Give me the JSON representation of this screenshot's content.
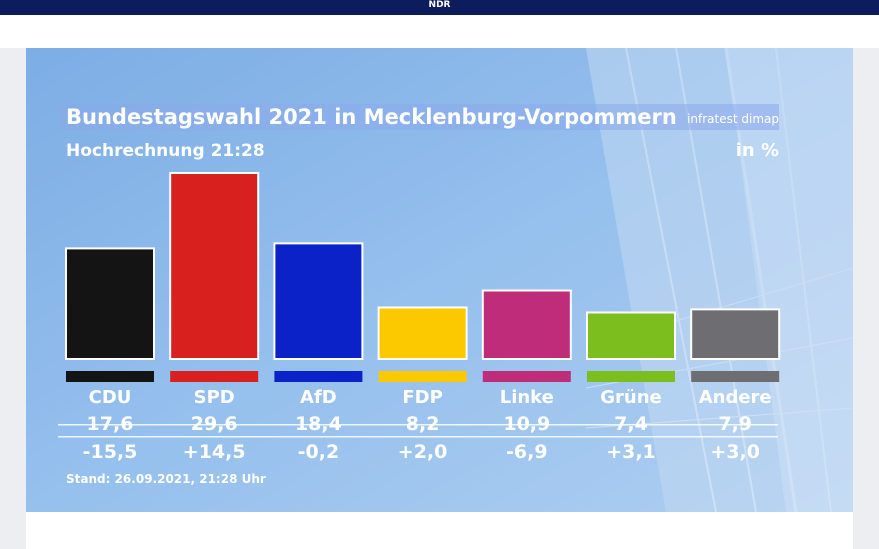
{
  "header": {
    "brand": "NDR"
  },
  "graphic": {
    "title": "Bundestagswahl 2021 in Mecklenburg-Vorpommern",
    "source": "infratest dimap",
    "subtitle": "Hochrechnung 21:28",
    "unit": "in %",
    "footer": "Stand: 26.09.2021, 21:28 Uhr"
  },
  "chart_data": {
    "type": "bar",
    "title": "Bundestagswahl 2021 in Mecklenburg-Vorpommern",
    "subtitle": "Hochrechnung 21:28",
    "ylabel": "in %",
    "categories": [
      "CDU",
      "SPD",
      "AfD",
      "FDP",
      "Linke",
      "Grüne",
      "Andere"
    ],
    "values": [
      17.6,
      29.6,
      18.4,
      8.2,
      10.9,
      7.4,
      7.9
    ],
    "value_labels": [
      "17,6",
      "29,6",
      "18,4",
      "8,2",
      "10,9",
      "7,4",
      "7,9"
    ],
    "changes": [
      -15.5,
      14.5,
      -0.2,
      2.0,
      -6.9,
      3.1,
      3.0
    ],
    "change_labels": [
      "-15,5",
      "+14,5",
      "-0,2",
      "+2,0",
      "-6,9",
      "+3,1",
      "+3,0"
    ],
    "colors": [
      "#141414",
      "#d8201e",
      "#0a22c8",
      "#fcc800",
      "#be2c7a",
      "#7cbe1e",
      "#6e6e72"
    ],
    "grid": false,
    "legend": "none"
  }
}
